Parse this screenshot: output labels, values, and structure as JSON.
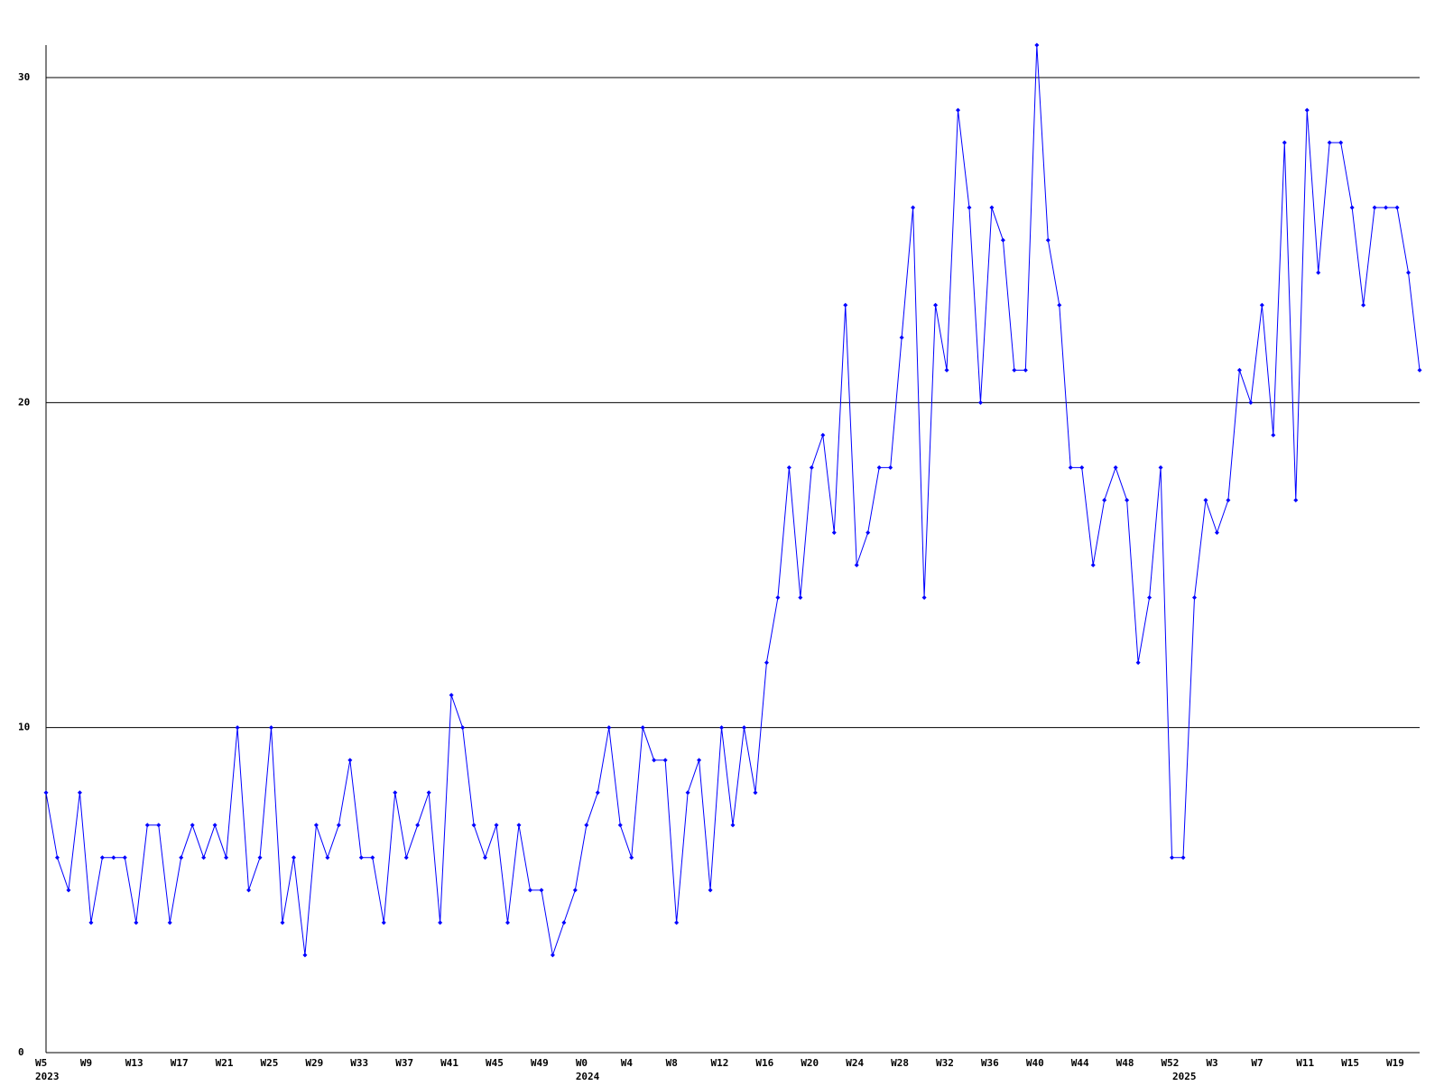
{
  "chart_data": {
    "type": "line",
    "categories": [
      "W5",
      null,
      null,
      null,
      "W9",
      null,
      null,
      null,
      "W13",
      null,
      null,
      null,
      "W17",
      null,
      null,
      null,
      "W21",
      null,
      null,
      null,
      "W25",
      null,
      null,
      null,
      "W29",
      null,
      null,
      null,
      "W33",
      null,
      null,
      null,
      "W37",
      null,
      null,
      null,
      "W41",
      null,
      null,
      null,
      "W45",
      null,
      null,
      null,
      "W49",
      null,
      null,
      null,
      "W0",
      null,
      null,
      null,
      "W4",
      null,
      null,
      null,
      "W8",
      null,
      null,
      null,
      "W12",
      null,
      null,
      null,
      "W16",
      null,
      null,
      null,
      "W20",
      null,
      null,
      null,
      "W24",
      null,
      null,
      null,
      "W28",
      null,
      null,
      null,
      "W32",
      null,
      null,
      null,
      "W36",
      null,
      null,
      null,
      "W40",
      null,
      null,
      null,
      "W44",
      null,
      null,
      null,
      "W48",
      null,
      null,
      null,
      "W52",
      null,
      null,
      null,
      "W3",
      null,
      null,
      null,
      "W7",
      null,
      null,
      null,
      "W11",
      null,
      null,
      null,
      "W15",
      null,
      null,
      null,
      "W19",
      null,
      null
    ],
    "years": [
      "2023",
      null,
      null,
      null,
      null,
      null,
      null,
      null,
      null,
      null,
      null,
      null,
      null,
      null,
      null,
      null,
      null,
      null,
      null,
      null,
      null,
      null,
      null,
      null,
      null,
      null,
      null,
      null,
      null,
      null,
      null,
      null,
      null,
      null,
      null,
      null,
      null,
      null,
      null,
      null,
      null,
      null,
      null,
      null,
      null,
      null,
      null,
      null,
      "2024",
      null,
      null,
      null,
      null,
      null,
      null,
      null,
      null,
      null,
      null,
      null,
      null,
      null,
      null,
      null,
      null,
      null,
      null,
      null,
      null,
      null,
      null,
      null,
      null,
      null,
      null,
      null,
      null,
      null,
      null,
      null,
      null,
      null,
      null,
      null,
      null,
      null,
      null,
      null,
      null,
      null,
      null,
      null,
      null,
      null,
      null,
      null,
      null,
      null,
      null,
      null,
      null,
      "2025",
      null,
      null,
      null,
      null,
      null,
      null,
      null,
      null,
      null,
      null,
      null,
      null,
      null,
      null,
      null,
      null,
      null,
      null,
      null,
      null
    ],
    "series": [
      {
        "color": "#0000ff",
        "values": [
          8,
          6,
          5,
          8,
          4,
          6,
          6,
          6,
          4,
          7,
          7,
          4,
          6,
          7,
          6,
          7,
          6,
          10,
          5,
          6,
          10,
          4,
          6,
          3,
          7,
          6,
          7,
          9,
          6,
          6,
          4,
          8,
          6,
          7,
          8,
          4,
          11,
          10,
          7,
          6,
          7,
          4,
          7,
          5,
          5,
          3,
          4,
          5,
          7,
          8,
          10,
          7,
          6,
          10,
          9,
          9,
          4,
          8,
          9,
          5,
          10,
          7,
          10,
          8,
          12,
          14,
          18,
          14,
          18,
          19,
          16,
          23,
          15,
          16,
          18,
          18,
          22,
          26,
          14,
          23,
          21,
          29,
          26,
          20,
          26,
          25,
          21,
          21,
          31,
          25,
          23,
          18,
          18,
          15,
          17,
          18,
          17,
          12,
          14,
          18,
          6,
          6,
          14,
          17,
          16,
          17,
          21,
          20,
          23,
          19,
          28,
          17,
          29,
          24,
          28,
          28,
          26,
          23,
          26,
          26,
          26,
          24,
          21
        ]
      }
    ],
    "ylim": [
      0,
      31
    ],
    "yticks": [
      0,
      10,
      20,
      30
    ],
    "grid": true
  }
}
